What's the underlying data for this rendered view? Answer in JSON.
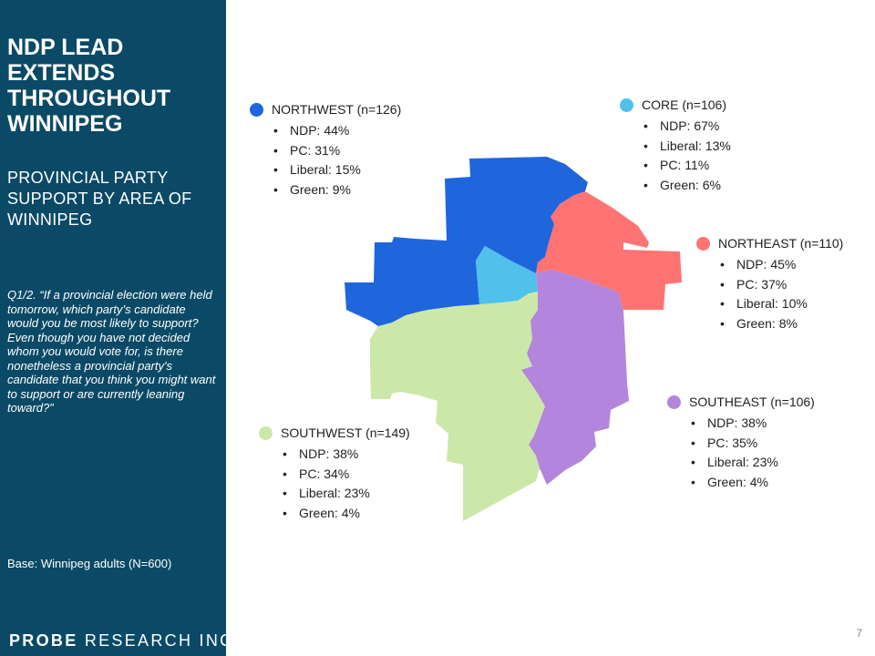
{
  "sidebar": {
    "title": "NDP LEAD EXTENDS THROUGHOUT WINNIPEG",
    "subtitle": "PROVINCIAL PARTY SUPPORT BY AREA OF WINNIPEG",
    "question": "Q1/2. “If a provincial election were held tomorrow, which party’s candidate would you be most likely to support? Even though you have not decided whom you would vote for, is there nonetheless a provincial party's candidate that you think you might want to support or are currently leaning toward?”",
    "base": "Base: Winnipeg adults (N=600)",
    "logo_bold": "PROBE",
    "logo_light": "RESEARCH INC."
  },
  "page_number": "7",
  "regions": [
    {
      "key": "northwest",
      "label": "NORTHWEST (n=126)",
      "color": "#1f66dc",
      "results": [
        "NDP: 44%",
        "PC: 31%",
        "Liberal: 15%",
        "Green: 9%"
      ]
    },
    {
      "key": "core",
      "label": "CORE (n=106)",
      "color": "#4fc1ec",
      "results": [
        "NDP: 67%",
        "Liberal: 13%",
        "PC: 11%",
        "Green: 6%"
      ]
    },
    {
      "key": "northeast",
      "label": "NORTHEAST (n=110)",
      "color": "#ff7373",
      "results": [
        "NDP: 45%",
        "PC: 37%",
        "Liberal: 10%",
        "Green: 8%"
      ]
    },
    {
      "key": "southeast",
      "label": "SOUTHEAST (n=106)",
      "color": "#b385dc",
      "results": [
        "NDP: 38%",
        "PC: 35%",
        "Liberal: 23%",
        "Green: 4%"
      ]
    },
    {
      "key": "southwest",
      "label": "SOUTHWEST (n=149)",
      "color": "#cce8a8",
      "results": [
        "NDP: 38%",
        "PC: 34%",
        "Liberal: 23%",
        "Green: 4%"
      ]
    }
  ]
}
